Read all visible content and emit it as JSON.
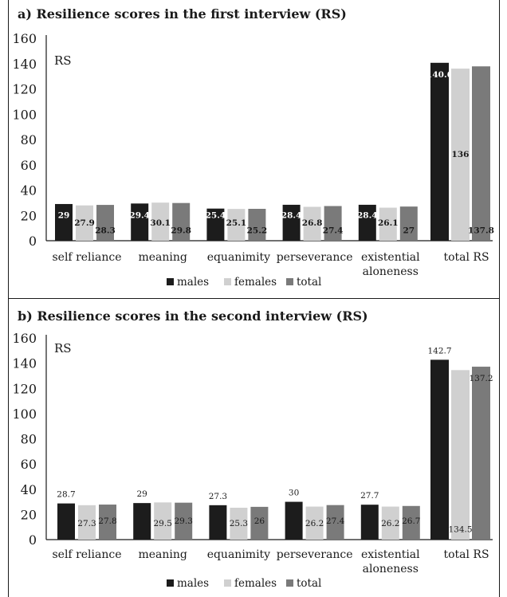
{
  "chart_data": [
    {
      "type": "bar",
      "title": "a) Resilience scores in the first interview (RS)",
      "ylabel": "RS",
      "xlabel": "",
      "ylim": [
        0,
        160
      ],
      "yticks": [
        0,
        20,
        40,
        60,
        80,
        100,
        120,
        140,
        160
      ],
      "categories": [
        "self reliance",
        "meaning",
        "equanimity",
        "perseverance",
        "existential aloneness",
        "total RS"
      ],
      "category_lines": [
        [
          "self reliance"
        ],
        [
          "meaning"
        ],
        [
          "equanimity"
        ],
        [
          "perseverance"
        ],
        [
          "existential",
          "aloneness"
        ],
        [
          "total RS"
        ]
      ],
      "series": [
        {
          "name": "males",
          "color": "#1c1c1c",
          "values": [
            29,
            29.4,
            25.4,
            28.4,
            28.4,
            140.6
          ]
        },
        {
          "name": "females",
          "color": "#d0d0d0",
          "values": [
            27.9,
            30.1,
            25.1,
            26.8,
            26.1,
            136
          ]
        },
        {
          "name": "total",
          "color": "#7a7a7a",
          "values": [
            28.3,
            29.8,
            25.2,
            27.4,
            27,
            137.8
          ]
        }
      ],
      "data_labels": [
        [
          "29",
          "29.4",
          "25.4",
          "28.4",
          "28.4",
          "140.6"
        ],
        [
          "27.9",
          "30.1",
          "25.1",
          "26.8",
          "26.1",
          "136"
        ],
        [
          "28.3",
          "29.8",
          "25.2",
          "27.4",
          "27",
          "137.8"
        ]
      ],
      "grid": false,
      "legend_position": "bottom"
    },
    {
      "type": "bar",
      "title": "b) Resilience scores in the second interview (RS)",
      "ylabel": "RS",
      "xlabel": "",
      "ylim": [
        0,
        160
      ],
      "yticks": [
        0,
        20,
        40,
        60,
        80,
        100,
        120,
        140,
        160
      ],
      "categories": [
        "self reliance",
        "meaning",
        "equanimity",
        "perseverance",
        "existential aloneness",
        "total RS"
      ],
      "category_lines": [
        [
          "self reliance"
        ],
        [
          "meaning"
        ],
        [
          "equanimity"
        ],
        [
          "perseverance"
        ],
        [
          "existential",
          "aloneness"
        ],
        [
          "total RS"
        ]
      ],
      "series": [
        {
          "name": "males",
          "color": "#1c1c1c",
          "values": [
            28.7,
            29,
            27.3,
            30,
            27.7,
            142.7
          ]
        },
        {
          "name": "females",
          "color": "#d0d0d0",
          "values": [
            27.3,
            29.5,
            25.3,
            26.2,
            26.2,
            134.5
          ]
        },
        {
          "name": "total",
          "color": "#7a7a7a",
          "values": [
            27.8,
            29.3,
            26,
            27.4,
            26.7,
            137.2
          ]
        }
      ],
      "data_labels": [
        [
          "28.7",
          "29",
          "27.3",
          "30",
          "27.7",
          "142.7"
        ],
        [
          "27.3",
          "29.5",
          "25.3",
          "26.2",
          "26.2",
          "134.5"
        ],
        [
          "27.8",
          "29.3",
          "26",
          "27.4",
          "26.7",
          "137.2"
        ]
      ],
      "grid": false,
      "legend_position": "bottom"
    }
  ]
}
